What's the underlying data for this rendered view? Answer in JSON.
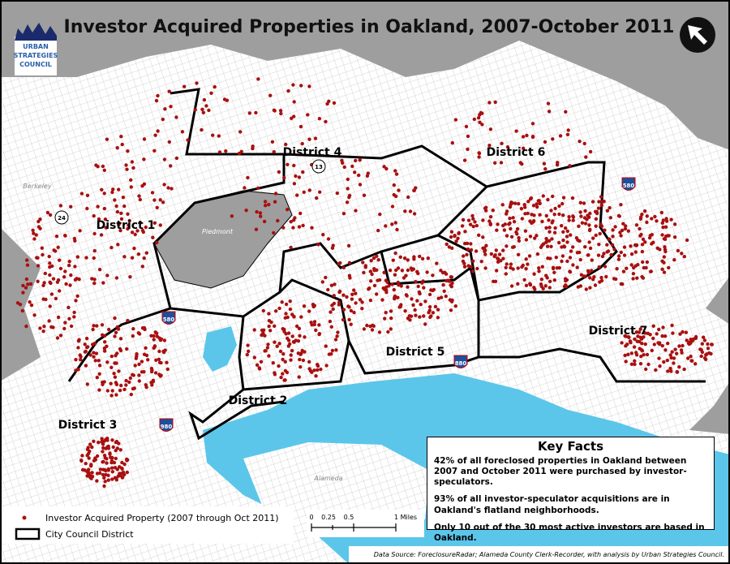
{
  "header": {
    "title": "Investor Acquired Properties in Oakland, 2007-October 2011",
    "logo": [
      "URBAN",
      "STRATEGIES",
      "COUNCIL"
    ]
  },
  "map": {
    "districts": [
      "District 1",
      "District 2",
      "District 3",
      "District 4",
      "District 5",
      "District 6",
      "District 7"
    ],
    "places": [
      "Berkeley",
      "Piedmont",
      "Alameda"
    ],
    "highways": [
      "580",
      "13",
      "24",
      "580",
      "880",
      "980"
    ]
  },
  "key_facts": {
    "heading": "Key Facts",
    "items": [
      "42% of all foreclosed properties in Oakland between 2007 and October 2011 were purchased by investor-speculators.",
      "93% of all investor-speculator acquisitions are in Oakland's flatland neighborhoods.",
      "Only 10 out of the 30 most active investors are based in Oakland."
    ]
  },
  "legend": {
    "items": [
      "Investor Acquired Property (2007 through Oct 2011)",
      "City Council District"
    ]
  },
  "scale_bar": {
    "labels": [
      "0",
      "0.25",
      "0.5",
      "1 Miles"
    ]
  },
  "source": "Data Source: ForeclosureRadar; Alameda County Clerk-Recorder, with analysis by Urban Strategies Council."
}
